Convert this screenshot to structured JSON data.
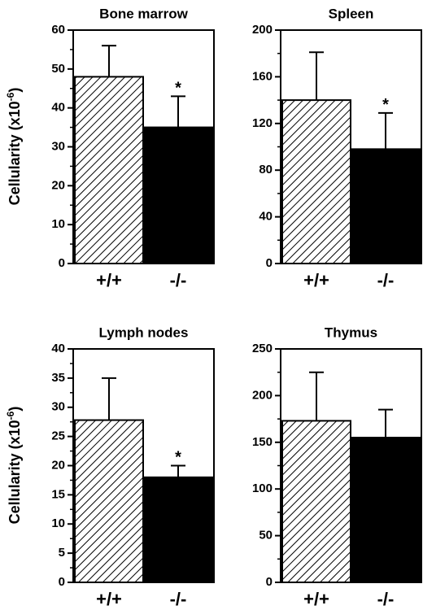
{
  "figure": {
    "ylabel_main": "Cellularity (x10",
    "ylabel_exp": "-6",
    "ylabel_close": ")"
  },
  "colors": {
    "knockout_bar": "#000000",
    "wildtype_hatch": "#000000",
    "axis": "#000000"
  },
  "chart_data": [
    {
      "type": "bar",
      "title": "Bone marrow",
      "categories": [
        "+/+",
        "-/-"
      ],
      "values": [
        48,
        35
      ],
      "errors": [
        8,
        8
      ],
      "significance": [
        "",
        "*"
      ],
      "ylim": [
        0,
        60
      ],
      "yticks": [
        "0",
        "10",
        "20",
        "30",
        "40",
        "50",
        "60"
      ],
      "ylabel": "Cellularity (x10-6)"
    },
    {
      "type": "bar",
      "title": "Spleen",
      "categories": [
        "+/+",
        "-/-"
      ],
      "values": [
        140,
        98
      ],
      "errors": [
        41,
        31
      ],
      "significance": [
        "",
        "*"
      ],
      "ylim": [
        0,
        200
      ],
      "yticks": [
        "0",
        "40",
        "80",
        "120",
        "160",
        "200"
      ],
      "ylabel": ""
    },
    {
      "type": "bar",
      "title": "Lymph nodes",
      "categories": [
        "+/+",
        "-/-"
      ],
      "values": [
        27.8,
        18
      ],
      "errors": [
        7.2,
        2
      ],
      "significance": [
        "",
        "*"
      ],
      "ylim": [
        0,
        40
      ],
      "yticks": [
        "0",
        "5",
        "10",
        "15",
        "20",
        "25",
        "30",
        "35",
        "40"
      ],
      "ylabel": "Cellularity (x10-6)"
    },
    {
      "type": "bar",
      "title": "Thymus",
      "categories": [
        "+/+",
        "-/-"
      ],
      "values": [
        173,
        155
      ],
      "errors": [
        52,
        30
      ],
      "significance": [
        "",
        ""
      ],
      "ylim": [
        0,
        250
      ],
      "yticks": [
        "0",
        "50",
        "100",
        "150",
        "200",
        "250"
      ],
      "ylabel": ""
    }
  ]
}
